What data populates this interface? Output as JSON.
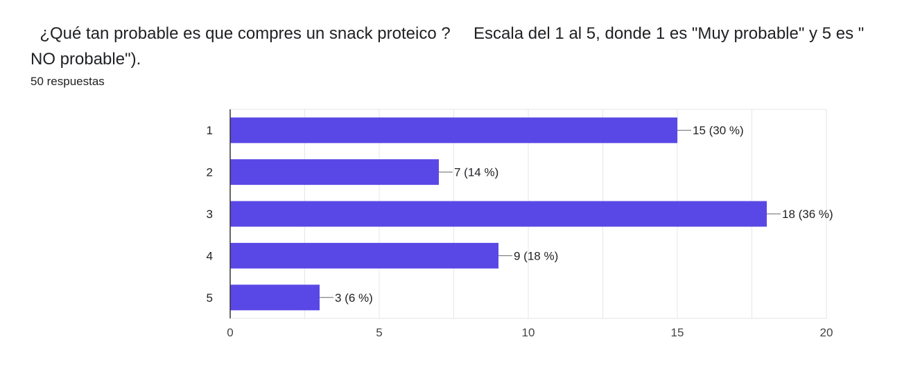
{
  "question": {
    "title": "  ¿Qué tan probable es que compres un snack proteico ?     Escala del 1 al 5, donde 1 es \"Muy probable\" y 5 es \" NO probable\").",
    "response_count": "50 respuestas"
  },
  "colors": {
    "bar": "#5a48e6",
    "axis": "#333333",
    "grid": "#e6e6e6",
    "leader": "#666666",
    "text": "#202124"
  },
  "chart_data": {
    "type": "bar",
    "orientation": "horizontal",
    "categories": [
      "1",
      "2",
      "3",
      "4",
      "5"
    ],
    "values": [
      15,
      7,
      18,
      9,
      3
    ],
    "data_labels": [
      "15 (30 %)",
      "7 (14 %)",
      "18 (36 %)",
      "9 (18 %)",
      "3 (6 %)"
    ],
    "xlim": [
      0,
      20
    ],
    "xticks": [
      0,
      5,
      10,
      15,
      20
    ],
    "grid": true
  }
}
